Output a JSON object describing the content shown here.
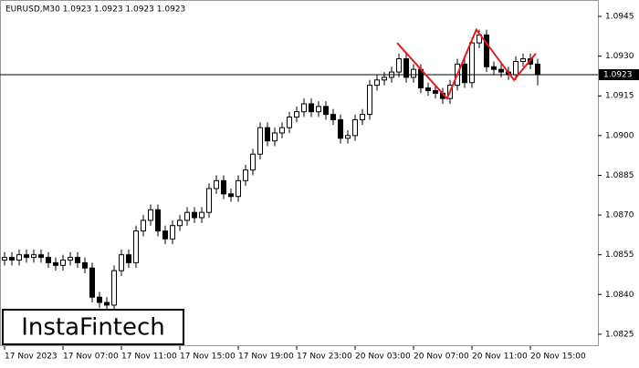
{
  "chart_data": {
    "type": "candlestick",
    "title": "EURUSD,M30  1.0923 1.0923 1.0923 1.0923",
    "watermark": "InstaFintech",
    "x": [
      0,
      1,
      2,
      3,
      4,
      5,
      6,
      7,
      8,
      9,
      10,
      11,
      12,
      13,
      14,
      15,
      16,
      17,
      18,
      19,
      20,
      21,
      22,
      23,
      24,
      25,
      26,
      27,
      28,
      29,
      30,
      31,
      32,
      33,
      34,
      35,
      36,
      37,
      38,
      39,
      40,
      41,
      42,
      43,
      44,
      45,
      46,
      47,
      48,
      49,
      50,
      51,
      52,
      53,
      54,
      55,
      56,
      57,
      58,
      59,
      60,
      61,
      62,
      63,
      64,
      65,
      66,
      67,
      68,
      69,
      70,
      71,
      72,
      73
    ],
    "open": [
      1.0853,
      1.0854,
      1.0853,
      1.0855,
      1.0854,
      1.0855,
      1.0854,
      1.0852,
      1.0851,
      1.0853,
      1.0854,
      1.0852,
      1.085,
      1.0839,
      1.0837,
      1.0836,
      1.0849,
      1.0855,
      1.0852,
      1.0864,
      1.0868,
      1.0872,
      1.0864,
      1.0861,
      1.0866,
      1.0868,
      1.0871,
      1.0869,
      1.0871,
      1.088,
      1.0883,
      1.0878,
      1.0877,
      1.0883,
      1.0887,
      1.0893,
      1.0903,
      1.0898,
      1.0901,
      1.0903,
      1.0907,
      1.0909,
      1.0912,
      1.0909,
      1.0911,
      1.0908,
      1.0906,
      1.0899,
      1.09,
      1.0906,
      1.0908,
      1.0919,
      1.0921,
      1.0922,
      1.0924,
      1.0929,
      1.0922,
      1.0925,
      1.0918,
      1.0917,
      1.0916,
      1.0914,
      1.0919,
      1.0927,
      1.092,
      1.0935,
      1.0938,
      1.0926,
      1.0925,
      1.0924,
      1.0923,
      1.0928,
      1.0929,
      1.0927
    ],
    "close": [
      1.0854,
      1.0853,
      1.0855,
      1.0854,
      1.0855,
      1.0854,
      1.0852,
      1.0851,
      1.0853,
      1.0854,
      1.0852,
      1.085,
      1.0839,
      1.0837,
      1.0836,
      1.0849,
      1.0855,
      1.0852,
      1.0864,
      1.0868,
      1.0872,
      1.0864,
      1.0861,
      1.0866,
      1.0868,
      1.0871,
      1.0869,
      1.0871,
      1.088,
      1.0883,
      1.0878,
      1.0877,
      1.0883,
      1.0887,
      1.0893,
      1.0903,
      1.0898,
      1.0901,
      1.0903,
      1.0907,
      1.0909,
      1.0912,
      1.0909,
      1.0911,
      1.0908,
      1.0906,
      1.0899,
      1.09,
      1.0906,
      1.0908,
      1.0919,
      1.0921,
      1.0922,
      1.0924,
      1.0929,
      1.0922,
      1.0925,
      1.0918,
      1.0917,
      1.0916,
      1.0914,
      1.0919,
      1.0927,
      1.092,
      1.0935,
      1.0938,
      1.0926,
      1.0925,
      1.0924,
      1.0923,
      1.0928,
      1.0929,
      1.0927,
      1.0923
    ],
    "high": [
      1.0856,
      1.0856,
      1.0857,
      1.0857,
      1.0857,
      1.0857,
      1.0856,
      1.0854,
      1.0855,
      1.0856,
      1.0856,
      1.0854,
      1.0852,
      1.0841,
      1.0839,
      1.0851,
      1.0857,
      1.0857,
      1.0866,
      1.087,
      1.0874,
      1.0874,
      1.0866,
      1.0868,
      1.087,
      1.0873,
      1.0873,
      1.0873,
      1.0882,
      1.0885,
      1.0885,
      1.088,
      1.0885,
      1.0889,
      1.0895,
      1.0905,
      1.0905,
      1.0903,
      1.0905,
      1.0909,
      1.0911,
      1.0914,
      1.0914,
      1.0913,
      1.0913,
      1.091,
      1.0908,
      1.0902,
      1.0908,
      1.091,
      1.0921,
      1.0923,
      1.0924,
      1.0926,
      1.0931,
      1.0931,
      1.0927,
      1.0927,
      1.092,
      1.0919,
      1.0918,
      1.0921,
      1.0929,
      1.0929,
      1.0937,
      1.094,
      1.094,
      1.0928,
      1.0927,
      1.0926,
      1.093,
      1.0931,
      1.0931,
      1.0929
    ],
    "low": [
      1.0851,
      1.0851,
      1.0851,
      1.0852,
      1.0852,
      1.0852,
      1.085,
      1.0849,
      1.0849,
      1.0851,
      1.085,
      1.0848,
      1.0837,
      1.0835,
      1.0833,
      1.0834,
      1.0847,
      1.085,
      1.085,
      1.0862,
      1.0866,
      1.0862,
      1.0859,
      1.0859,
      1.0864,
      1.0866,
      1.0867,
      1.0867,
      1.0869,
      1.0878,
      1.0876,
      1.0875,
      1.0875,
      1.0881,
      1.0885,
      1.0891,
      1.0896,
      1.0896,
      1.0899,
      1.0901,
      1.0905,
      1.0907,
      1.0907,
      1.0907,
      1.0906,
      1.0904,
      1.0897,
      1.0897,
      1.0898,
      1.0904,
      1.0906,
      1.0917,
      1.0919,
      1.092,
      1.0922,
      1.092,
      1.092,
      1.0916,
      1.0915,
      1.0914,
      1.0912,
      1.0912,
      1.0917,
      1.0918,
      1.0918,
      1.0933,
      1.0924,
      1.0923,
      1.0922,
      1.0921,
      1.0921,
      1.0926,
      1.0925,
      1.0919
    ],
    "up_color": "#ffffff",
    "down_color": "#000000",
    "last_price": 1.0923,
    "pattern": {
      "color": "#e8191b",
      "x": [
        53.75,
        60.6,
        64.6,
        69.75,
        72.75
      ],
      "y": [
        1.0935,
        1.0914,
        1.094,
        1.0921,
        1.0931
      ]
    },
    "xlim": [
      -0.625,
      81.25
    ],
    "xticks": [
      {
        "value": 0,
        "label": "17 Nov 2023"
      },
      {
        "value": 8,
        "label": "17 Nov 07:00"
      },
      {
        "value": 16,
        "label": "17 Nov 11:00"
      },
      {
        "value": 24,
        "label": "17 Nov 15:00"
      },
      {
        "value": 32,
        "label": "17 Nov 19:00"
      },
      {
        "value": 40,
        "label": "17 Nov 23:00"
      },
      {
        "value": 48,
        "label": "20 Nov 03:00"
      },
      {
        "value": 56,
        "label": "20 Nov 07:00"
      },
      {
        "value": 64,
        "label": "20 Nov 11:00"
      },
      {
        "value": 72,
        "label": "20 Nov 15:00"
      }
    ],
    "ylim": [
      1.08205,
      1.09512
    ],
    "yticks": [
      1.0825,
      {
        "value": 1.084,
        "label": "1.0840"
      },
      1.0855,
      {
        "value": 1.087,
        "label": "1.0870"
      },
      1.0885,
      {
        "value": 1.09,
        "label": "1.0900"
      },
      1.0915,
      {
        "value": 1.093,
        "label": "1.0930"
      },
      1.0945
    ]
  }
}
